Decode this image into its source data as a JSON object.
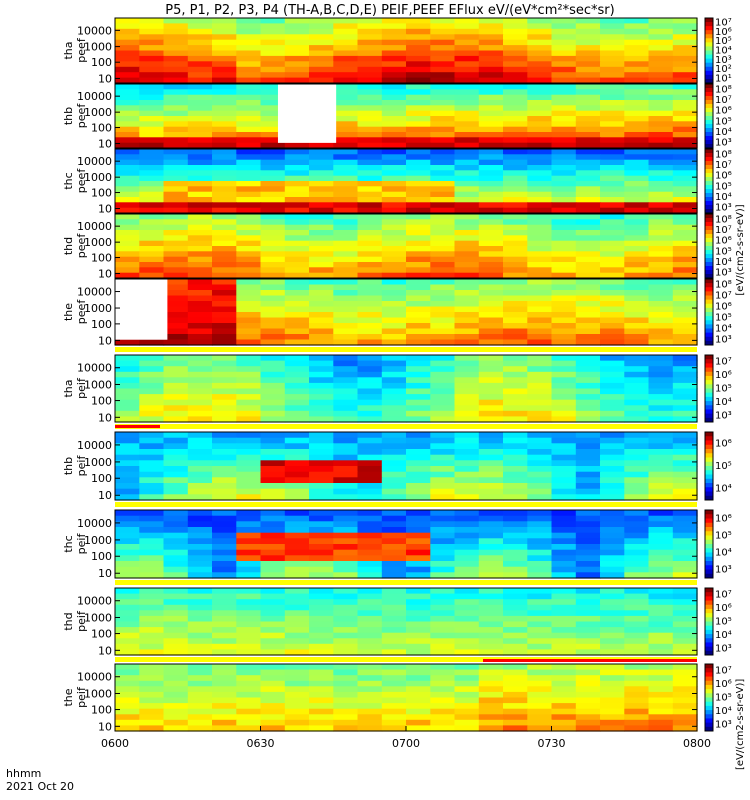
{
  "title": "P5, P1, P2, P3, P4 (TH-A,B,C,D,E) PEIF,PEEF EFlux eV/(eV*cm²*sec*sr)",
  "colorbar_label": "[eV/(cm2-s-sr-eV)]",
  "colorbar_label_peef": "[eV/(cm2-s-sr-eV)]",
  "footer": {
    "time_label": "hhmm",
    "date_label": "2021 Oct 20"
  },
  "chart_data": {
    "type": "heatmap",
    "x_ticks": [
      "0600",
      "0630",
      "0700",
      "0730",
      "0800"
    ],
    "y_ticks": [
      "10",
      "100",
      "1000",
      "10000"
    ],
    "y_scale": "log",
    "panels": [
      {
        "name": "tha peef",
        "line1": "tha",
        "line2": "peef",
        "cbar_ticks": [
          "10⁷",
          "10⁶",
          "10⁵",
          "10⁴",
          "10³",
          "10²",
          "10¹"
        ]
      },
      {
        "name": "thb peef",
        "line1": "thb",
        "line2": "peef",
        "cbar_ticks": [
          "10⁸",
          "10⁷",
          "10⁶",
          "10⁵",
          "10⁴",
          "10³"
        ]
      },
      {
        "name": "thc peef",
        "line1": "thc",
        "line2": "peef",
        "cbar_ticks": [
          "10⁸",
          "10⁷",
          "10⁶",
          "10⁵",
          "10⁴",
          "10³"
        ]
      },
      {
        "name": "thd peef",
        "line1": "thd",
        "line2": "peef",
        "cbar_ticks": [
          "10⁸",
          "10⁷",
          "10⁶",
          "10⁵",
          "10⁴",
          "10³"
        ]
      },
      {
        "name": "the peef",
        "line1": "the",
        "line2": "peef",
        "cbar_ticks": [
          "10⁸",
          "10⁷",
          "10⁶",
          "10⁵",
          "10⁴",
          "10³"
        ]
      },
      {
        "name": "tha peif",
        "line1": "tha",
        "line2": "peif",
        "cbar_ticks": [
          "10⁷",
          "10⁶",
          "10⁵",
          "10⁴",
          "10³"
        ]
      },
      {
        "name": "thb peif",
        "line1": "thb",
        "line2": "peif",
        "cbar_ticks": [
          "10⁶",
          "10⁵",
          "10⁴"
        ]
      },
      {
        "name": "thc peif",
        "line1": "thc",
        "line2": "peif",
        "cbar_ticks": [
          "10⁶",
          "10⁵",
          "10⁴",
          "10³"
        ]
      },
      {
        "name": "thd peif",
        "line1": "thd",
        "line2": "peif",
        "cbar_ticks": [
          "10⁷",
          "10⁶",
          "10⁵",
          "10⁴",
          "10³"
        ]
      },
      {
        "name": "the peif",
        "line1": "the",
        "line2": "peif",
        "cbar_ticks": [
          "10⁷",
          "10⁶",
          "10⁵",
          "10⁴",
          "10³"
        ]
      }
    ]
  }
}
